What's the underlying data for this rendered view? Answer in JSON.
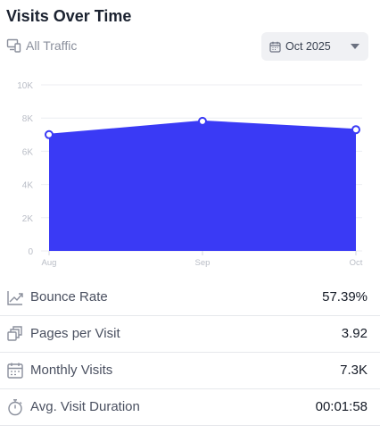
{
  "header": {
    "title": "Visits Over Time",
    "segment_label": "All Traffic"
  },
  "date_picker": {
    "value": "Oct 2025"
  },
  "colors": {
    "area": "#3a3af5",
    "point_fill": "#ffffff",
    "grid": "#eceef2",
    "tick": "#b9bdc6"
  },
  "chart_data": {
    "type": "area",
    "categories": [
      "Aug",
      "Sep",
      "Oct"
    ],
    "values": [
      7000,
      7800,
      7300
    ],
    "ylim": [
      0,
      10000
    ],
    "yticks": [
      0,
      2000,
      4000,
      6000,
      8000,
      10000
    ],
    "ytick_labels": [
      "0",
      "2K",
      "4K",
      "6K",
      "8K",
      "10K"
    ],
    "grid": true,
    "title": "",
    "xlabel": "",
    "ylabel": ""
  },
  "metrics": [
    {
      "icon": "trend-up-icon",
      "label": "Bounce Rate",
      "value": "57.39%"
    },
    {
      "icon": "pages-stack-icon",
      "label": "Pages per Visit",
      "value": "3.92"
    },
    {
      "icon": "calendar-icon",
      "label": "Monthly Visits",
      "value": "7.3K"
    },
    {
      "icon": "stopwatch-icon",
      "label": "Avg. Visit Duration",
      "value": "00:01:58"
    }
  ]
}
